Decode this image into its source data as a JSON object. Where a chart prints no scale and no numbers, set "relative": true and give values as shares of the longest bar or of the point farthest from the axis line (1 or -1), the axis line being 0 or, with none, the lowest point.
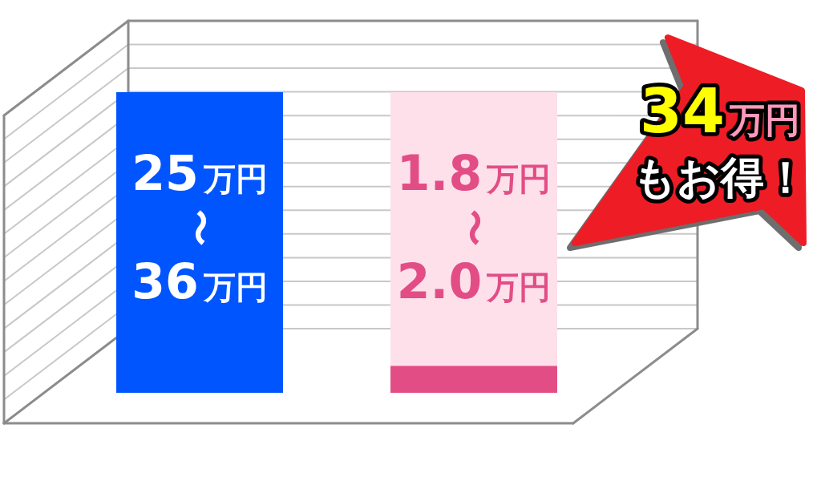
{
  "chart_data": {
    "type": "bar",
    "relative": true,
    "stacked": true,
    "grid": true,
    "categories": [
      null,
      null
    ],
    "series": [
      {
        "colors": [
          "#0055ff",
          "#e34d86"
        ],
        "values": [
          1,
          0.09
        ]
      },
      {
        "color": "#fde0ea",
        "values": [
          null,
          0.91
        ]
      }
    ],
    "annotations": [
      "25万円〜36万円",
      "1.8万円〜2.0万円",
      "34万円もお得！"
    ]
  }
}
